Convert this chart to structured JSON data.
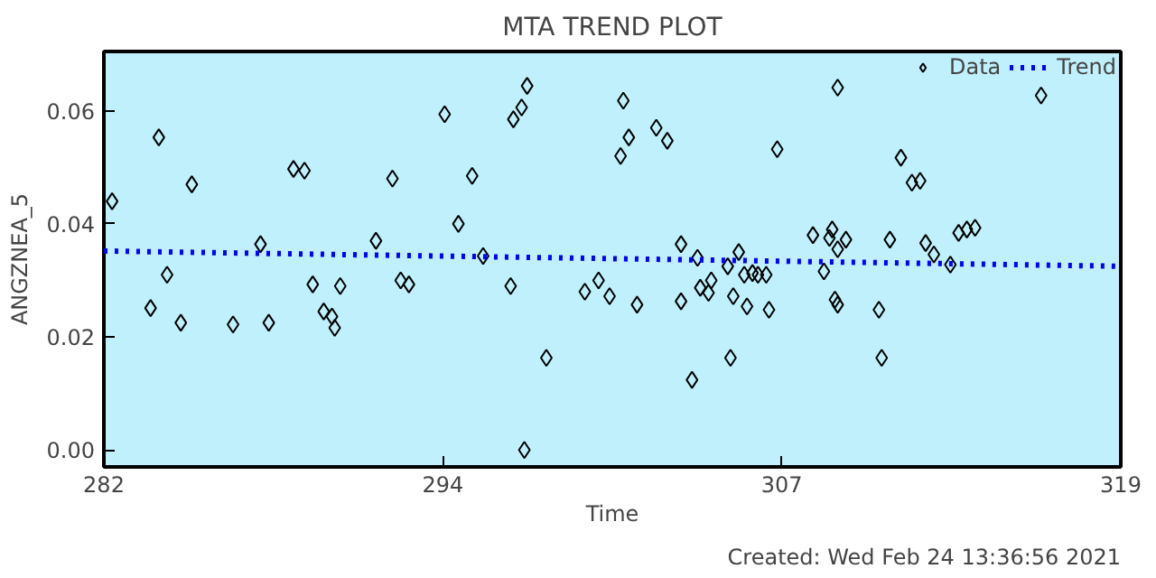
{
  "chart_data": {
    "type": "scatter",
    "title": "MTA TREND PLOT",
    "xlabel": "Time",
    "ylabel": "ANGZNEA_5",
    "annotations": [
      "Created: Wed Feb 24 13:36:56 2021"
    ],
    "xlim": [
      282,
      319
    ],
    "ylim": [
      -0.003,
      0.0705
    ],
    "xticks": [
      282,
      {
        "value": 294.333,
        "label": "294"
      },
      {
        "value": 306.667,
        "label": "307"
      },
      319
    ],
    "yticks": [
      {
        "value": 0,
        "label": "0.00"
      },
      {
        "value": 0.02,
        "label": "0.02"
      },
      {
        "value": 0.04,
        "label": "0.04"
      },
      {
        "value": 0.06,
        "label": "0.06"
      }
    ],
    "grid": false,
    "legend": "top right",
    "series": [
      {
        "name": "Data",
        "marker": "diamond",
        "color": "#000000",
        "x": [
          282.3,
          283.7,
          284.0,
          284.3,
          284.8,
          285.2,
          286.7,
          287.7,
          288.0,
          288.9,
          289.3,
          289.6,
          290.0,
          290.3,
          290.4,
          290.6,
          291.9,
          292.5,
          292.8,
          293.1,
          294.4,
          294.9,
          295.4,
          295.8,
          296.8,
          296.9,
          297.2,
          297.4,
          297.3,
          298.1,
          299.5,
          300.0,
          300.4,
          300.8,
          300.9,
          301.1,
          301.4,
          302.1,
          302.5,
          303.0,
          303.0,
          303.4,
          303.6,
          303.7,
          304.0,
          304.1,
          304.7,
          304.8,
          304.9,
          305.1,
          305.3,
          305.4,
          305.6,
          305.8,
          306.1,
          306.2,
          306.5,
          307.8,
          308.2,
          308.4,
          308.5,
          308.6,
          308.7,
          308.7,
          308.7,
          309.0,
          310.2,
          310.3,
          310.6,
          311.0,
          311.4,
          311.7,
          311.9,
          312.2,
          312.8,
          313.1,
          313.4,
          313.7,
          316.1
        ],
        "values": [
          0.044,
          0.0251,
          0.0553,
          0.031,
          0.0225,
          0.047,
          0.0222,
          0.0364,
          0.0225,
          0.0497,
          0.0494,
          0.0293,
          0.0245,
          0.0236,
          0.0216,
          0.029,
          0.037,
          0.048,
          0.03,
          0.0293,
          0.0594,
          0.04,
          0.0485,
          0.0343,
          0.029,
          0.0585,
          0.0606,
          0.0644,
          0.0,
          0.0163,
          0.028,
          0.03,
          0.0272,
          0.052,
          0.0618,
          0.0553,
          0.0257,
          0.057,
          0.0547,
          0.0263,
          0.0364,
          0.0124,
          0.034,
          0.0287,
          0.0278,
          0.03,
          0.0325,
          0.0163,
          0.0272,
          0.035,
          0.031,
          0.0254,
          0.0313,
          0.031,
          0.031,
          0.0248,
          0.0532,
          0.038,
          0.0316,
          0.0375,
          0.039,
          0.0266,
          0.0641,
          0.0257,
          0.0355,
          0.0372,
          0.0248,
          0.0163,
          0.0372,
          0.0517,
          0.0473,
          0.0476,
          0.0366,
          0.0346,
          0.0328,
          0.0384,
          0.039,
          0.0393,
          0.0627
        ]
      },
      {
        "name": "Trend",
        "type": "line",
        "color": "#0000ff",
        "line_style": "dotted",
        "x": [
          282,
          319
        ],
        "values": [
          0.0352,
          0.0325
        ]
      }
    ]
  }
}
